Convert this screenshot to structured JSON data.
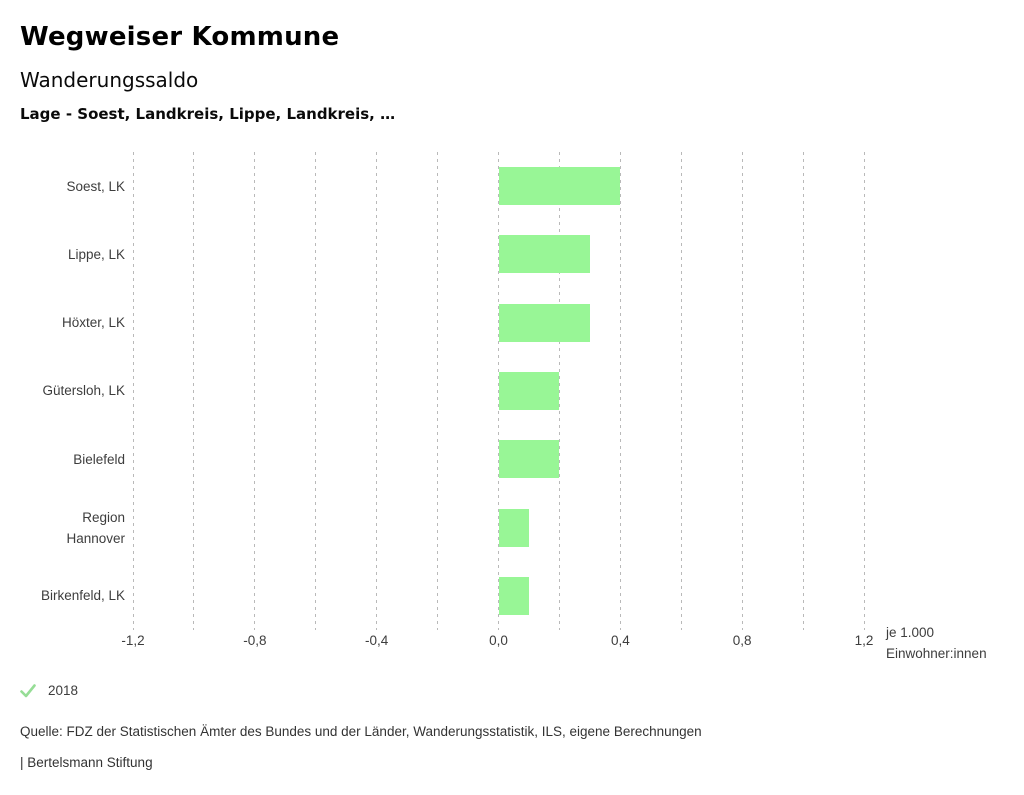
{
  "header": {
    "title": "Wegweiser Kommune",
    "subtitle": "Wanderungssaldo",
    "filter": "Lage - Soest, Landkreis, Lippe, Landkreis, …"
  },
  "chart_data": {
    "type": "bar",
    "orientation": "horizontal",
    "title": "Wanderungssaldo",
    "categories": [
      "Soest, LK",
      "Lippe, LK",
      "Höxter, LK",
      "Gütersloh, LK",
      "Bielefeld",
      "Region Hannover",
      "Birkenfeld, LK"
    ],
    "category_lines": [
      [
        "Soest, LK"
      ],
      [
        "Lippe, LK"
      ],
      [
        "Höxter, LK"
      ],
      [
        "Gütersloh, LK"
      ],
      [
        "Bielefeld"
      ],
      [
        "Region",
        "Hannover"
      ],
      [
        "Birkenfeld, LK"
      ]
    ],
    "series": [
      {
        "name": "2018",
        "values": [
          0.4,
          0.3,
          0.3,
          0.2,
          0.2,
          0.1,
          0.1
        ]
      }
    ],
    "xlim": [
      -1.2,
      1.2
    ],
    "grid": true,
    "grid_step": 0.2,
    "x_tick_values": [
      -1.2,
      -0.8,
      -0.4,
      0,
      0.4,
      0.8,
      1.2
    ],
    "x_tick_labels": [
      "-1,2",
      "-0,8",
      "-0,4",
      "0,0",
      "0,4",
      "0,8",
      "1,2"
    ],
    "xlabel": "je 1.000 Einwohner:innen",
    "xlabel_lines": [
      "je 1.000",
      "Einwohner:innen"
    ],
    "bar_color": "#98f696",
    "gridline_color": "#b9b9b9",
    "legend_position": "bottom-left"
  },
  "legend": {
    "label": "2018",
    "marker": "check-icon",
    "color": "#96dd96"
  },
  "footer": {
    "source": "Quelle: FDZ der Statistischen Ämter des Bundes und der Länder, Wanderungsstatistik, ILS, eigene Berechnungen",
    "attribution": "| Bertelsmann Stiftung"
  }
}
